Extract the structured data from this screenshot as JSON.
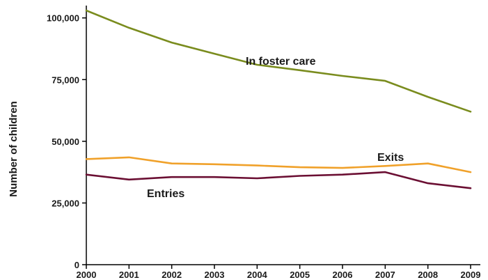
{
  "chart_data": {
    "type": "line",
    "title": "",
    "xlabel": "",
    "ylabel": "Number of children",
    "x": [
      "2000",
      "2001",
      "2002",
      "2003",
      "2004",
      "2005",
      "2006",
      "2007",
      "2008",
      "2009"
    ],
    "ylim": [
      0,
      105000
    ],
    "yticks": [
      0,
      25000,
      50000,
      75000,
      100000
    ],
    "ytick_labels": [
      "0",
      "25,000",
      "50,000",
      "75,000",
      "100,000"
    ],
    "grid": false,
    "legend": "none",
    "series": [
      {
        "name": "In foster care",
        "color": "#7a8c1e",
        "values": [
          103000,
          96000,
          90000,
          85500,
          81000,
          78800,
          76500,
          74500,
          68000,
          62000
        ]
      },
      {
        "name": "Exits",
        "color": "#f0a12a",
        "values": [
          42800,
          43500,
          41000,
          40700,
          40200,
          39500,
          39200,
          40000,
          41000,
          37500
        ]
      },
      {
        "name": "Entries",
        "color": "#6b0f33",
        "values": [
          36500,
          34500,
          35500,
          35500,
          35000,
          36000,
          36500,
          37500,
          33000,
          31000
        ]
      }
    ]
  }
}
